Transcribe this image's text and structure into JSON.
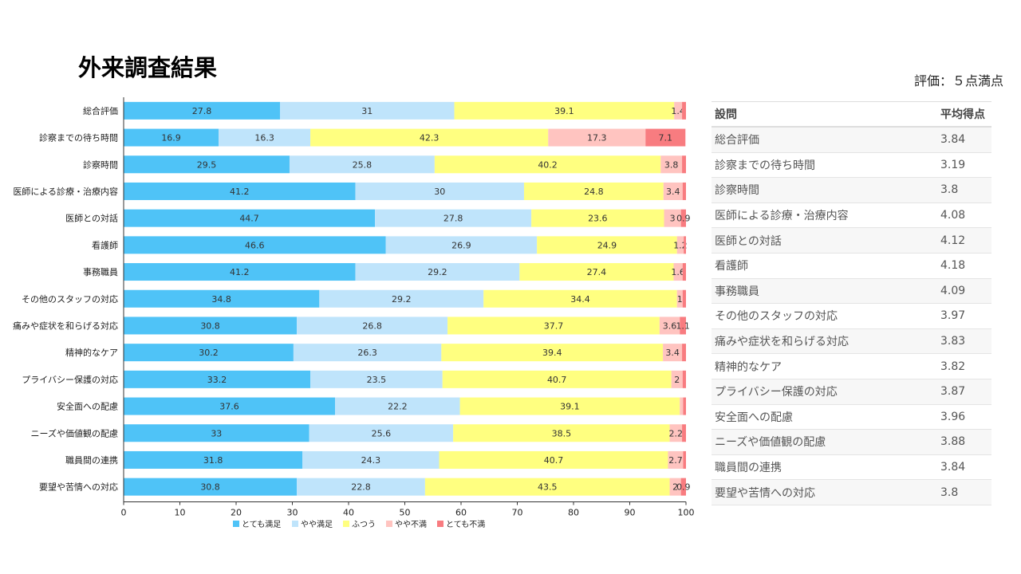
{
  "title": "外来調査結果",
  "note": "評価：５点満点",
  "table": {
    "headers": [
      "設問",
      "平均得点"
    ],
    "rows": [
      [
        "総合評価",
        "3.84"
      ],
      [
        "診察までの待ち時間",
        "3.19"
      ],
      [
        "診察時間",
        "3.8"
      ],
      [
        "医師による診療・治療内容",
        "4.08"
      ],
      [
        "医師との対話",
        "4.12"
      ],
      [
        "看護師",
        "4.18"
      ],
      [
        "事務職員",
        "4.09"
      ],
      [
        "その他のスタッフの対応",
        "3.97"
      ],
      [
        "痛みや症状を和らげる対応",
        "3.83"
      ],
      [
        "精神的なケア",
        "3.82"
      ],
      [
        "プライバシー保護の対応",
        "3.87"
      ],
      [
        "安全面への配慮",
        "3.96"
      ],
      [
        "ニーズや価値観の配慮",
        "3.88"
      ],
      [
        "職員間の連携",
        "3.84"
      ],
      [
        "要望や苦情への対応",
        "3.8"
      ]
    ]
  },
  "chart_data": {
    "type": "bar",
    "orientation": "horizontal",
    "stacked": true,
    "categories": [
      "総合評価",
      "診察までの待ち時間",
      "診察時間",
      "医師による診療・治療内容",
      "医師との対話",
      "看護師",
      "事務職員",
      "その他のスタッフの対応",
      "痛みや症状を和らげる対応",
      "精神的なケア",
      "プライバシー保護の対応",
      "安全面への配慮",
      "ニーズや価値観の配慮",
      "職員間の連携",
      "要望や苦情への対応"
    ],
    "series": [
      {
        "name": "とても満足",
        "color": "#4fc3f7",
        "values": [
          27.8,
          16.9,
          29.5,
          41.2,
          44.7,
          46.6,
          41.2,
          34.8,
          30.8,
          30.2,
          33.2,
          37.6,
          33,
          31.8,
          30.8
        ]
      },
      {
        "name": "やや満足",
        "color": "#bfe4fb",
        "values": [
          31,
          16.3,
          25.8,
          30,
          27.8,
          26.9,
          29.2,
          29.2,
          26.8,
          26.3,
          23.5,
          22.2,
          25.6,
          24.3,
          22.8
        ]
      },
      {
        "name": "ふつう",
        "color": "#ffff80",
        "values": [
          39.1,
          42.3,
          40.2,
          24.8,
          23.6,
          24.9,
          27.4,
          34.4,
          37.7,
          39.4,
          40.7,
          39.1,
          38.5,
          40.7,
          43.5
        ]
      },
      {
        "name": "やや不満",
        "color": "#ffc4c0",
        "values": [
          1.4,
          17.3,
          3.8,
          3.4,
          3,
          1.2,
          1.6,
          1,
          3.6,
          3.4,
          2,
          0.6,
          2.2,
          2.7,
          2
        ]
      },
      {
        "name": "とても不満",
        "color": "#f87c80",
        "values": [
          0.7,
          7.1,
          0.7,
          0.6,
          0.9,
          0.4,
          0.6,
          0.6,
          1.1,
          0.7,
          0.6,
          0.5,
          0.7,
          0.5,
          0.9
        ]
      }
    ],
    "xlim": [
      0,
      100
    ],
    "xticks": [
      0,
      10,
      20,
      30,
      40,
      50,
      60,
      70,
      80,
      90,
      100
    ],
    "legend": "bottom"
  }
}
